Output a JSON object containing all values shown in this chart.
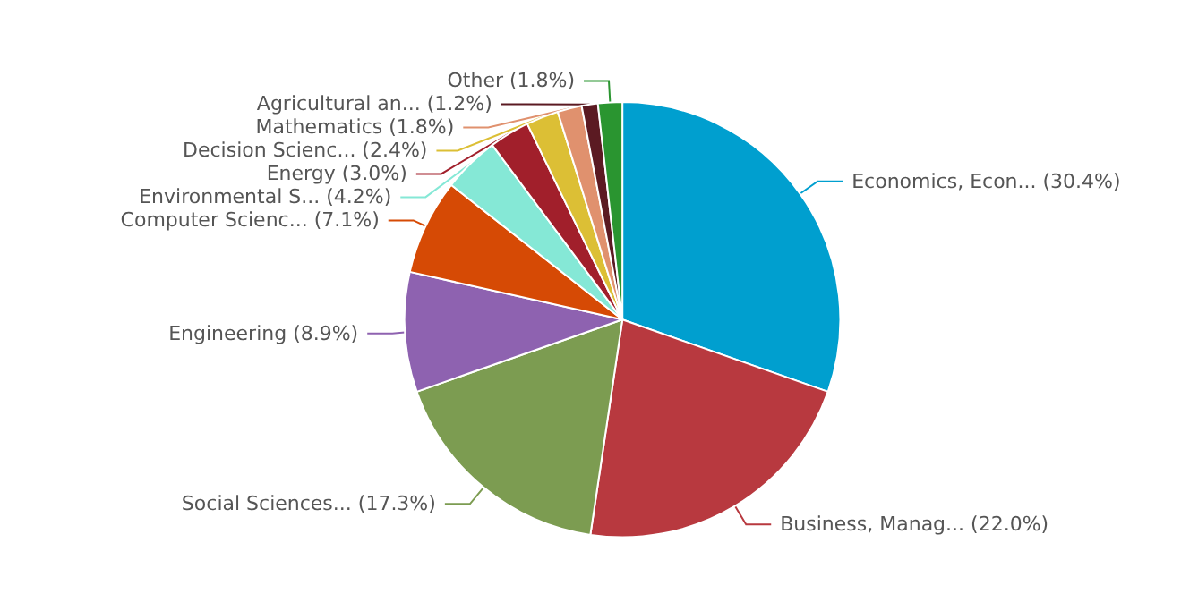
{
  "chart_data": {
    "type": "pie",
    "categories": [
      "Economics, Econ...",
      "Business, Manag...",
      "Social Sciences...",
      "Engineering",
      "Computer Scienc...",
      "Environmental S...",
      "Energy",
      "Decision Scienc...",
      "Mathematics",
      "Agricultural an...",
      "Other"
    ],
    "values": [
      30.4,
      22.0,
      17.3,
      8.9,
      7.1,
      4.2,
      3.0,
      2.4,
      1.8,
      1.2,
      1.8
    ],
    "value_labels": [
      "(30.4%)",
      "(22.0%)",
      "(17.3%)",
      "(8.9%)",
      "(7.1%)",
      "(4.2%)",
      "(3.0%)",
      "(2.4%)",
      "(1.8%)",
      "(1.2%)",
      "(1.8%)"
    ],
    "colors": [
      "#009fcf",
      "#b8393f",
      "#7c9c51",
      "#8e62b0",
      "#d64a05",
      "#85e8d6",
      "#a11f2b",
      "#dcbf35",
      "#e0916e",
      "#5b1a22",
      "#2a9530"
    ],
    "legend": false
  }
}
